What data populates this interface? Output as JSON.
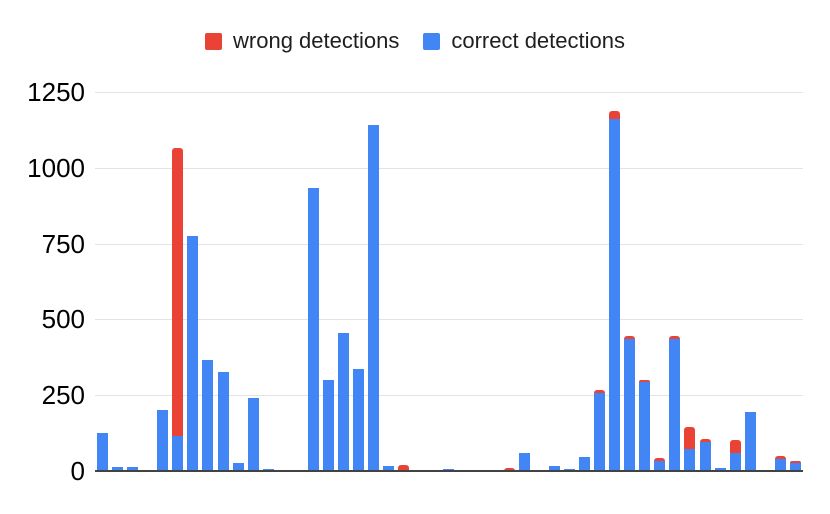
{
  "chart_data": {
    "type": "bar",
    "stacked": true,
    "title": "",
    "legend_position": "top",
    "grid": true,
    "ylim": [
      0,
      1250
    ],
    "yticks": [
      0,
      250,
      500,
      750,
      1000,
      1250
    ],
    "ytick_labels": [
      "0",
      "250",
      "500",
      "750",
      "1000",
      "1250"
    ],
    "n_bars": 47,
    "x_axis_labels_visible": false,
    "series": [
      {
        "name": "wrong detections",
        "color": "#EA4335",
        "values": [
          0,
          0,
          0,
          0,
          0,
          950,
          0,
          0,
          0,
          0,
          0,
          0,
          0,
          0,
          0,
          0,
          0,
          0,
          0,
          0,
          20,
          0,
          0,
          0,
          0,
          0,
          0,
          10,
          0,
          0,
          0,
          0,
          0,
          10,
          28,
          8,
          9,
          8,
          8,
          73,
          8,
          0,
          42,
          0,
          0,
          8,
          8
        ]
      },
      {
        "name": "correct detections",
        "color": "#4285F4",
        "values": [
          125,
          12,
          12,
          0,
          200,
          115,
          775,
          365,
          325,
          25,
          240,
          7,
          0,
          0,
          935,
          300,
          455,
          335,
          1140,
          15,
          0,
          0,
          0,
          8,
          0,
          0,
          0,
          0,
          60,
          0,
          15,
          8,
          45,
          258,
          1160,
          436,
          292,
          34,
          437,
          72,
          96,
          9,
          61,
          195,
          0,
          40,
          25
        ]
      }
    ],
    "colors": {
      "wrong": "#EA4335",
      "correct": "#4285F4",
      "gridline": "#e2e2e2",
      "axis_line": "#424242",
      "tick_label": "#000000",
      "legend_label": "#1f1f1f",
      "background": "#ffffff"
    }
  }
}
